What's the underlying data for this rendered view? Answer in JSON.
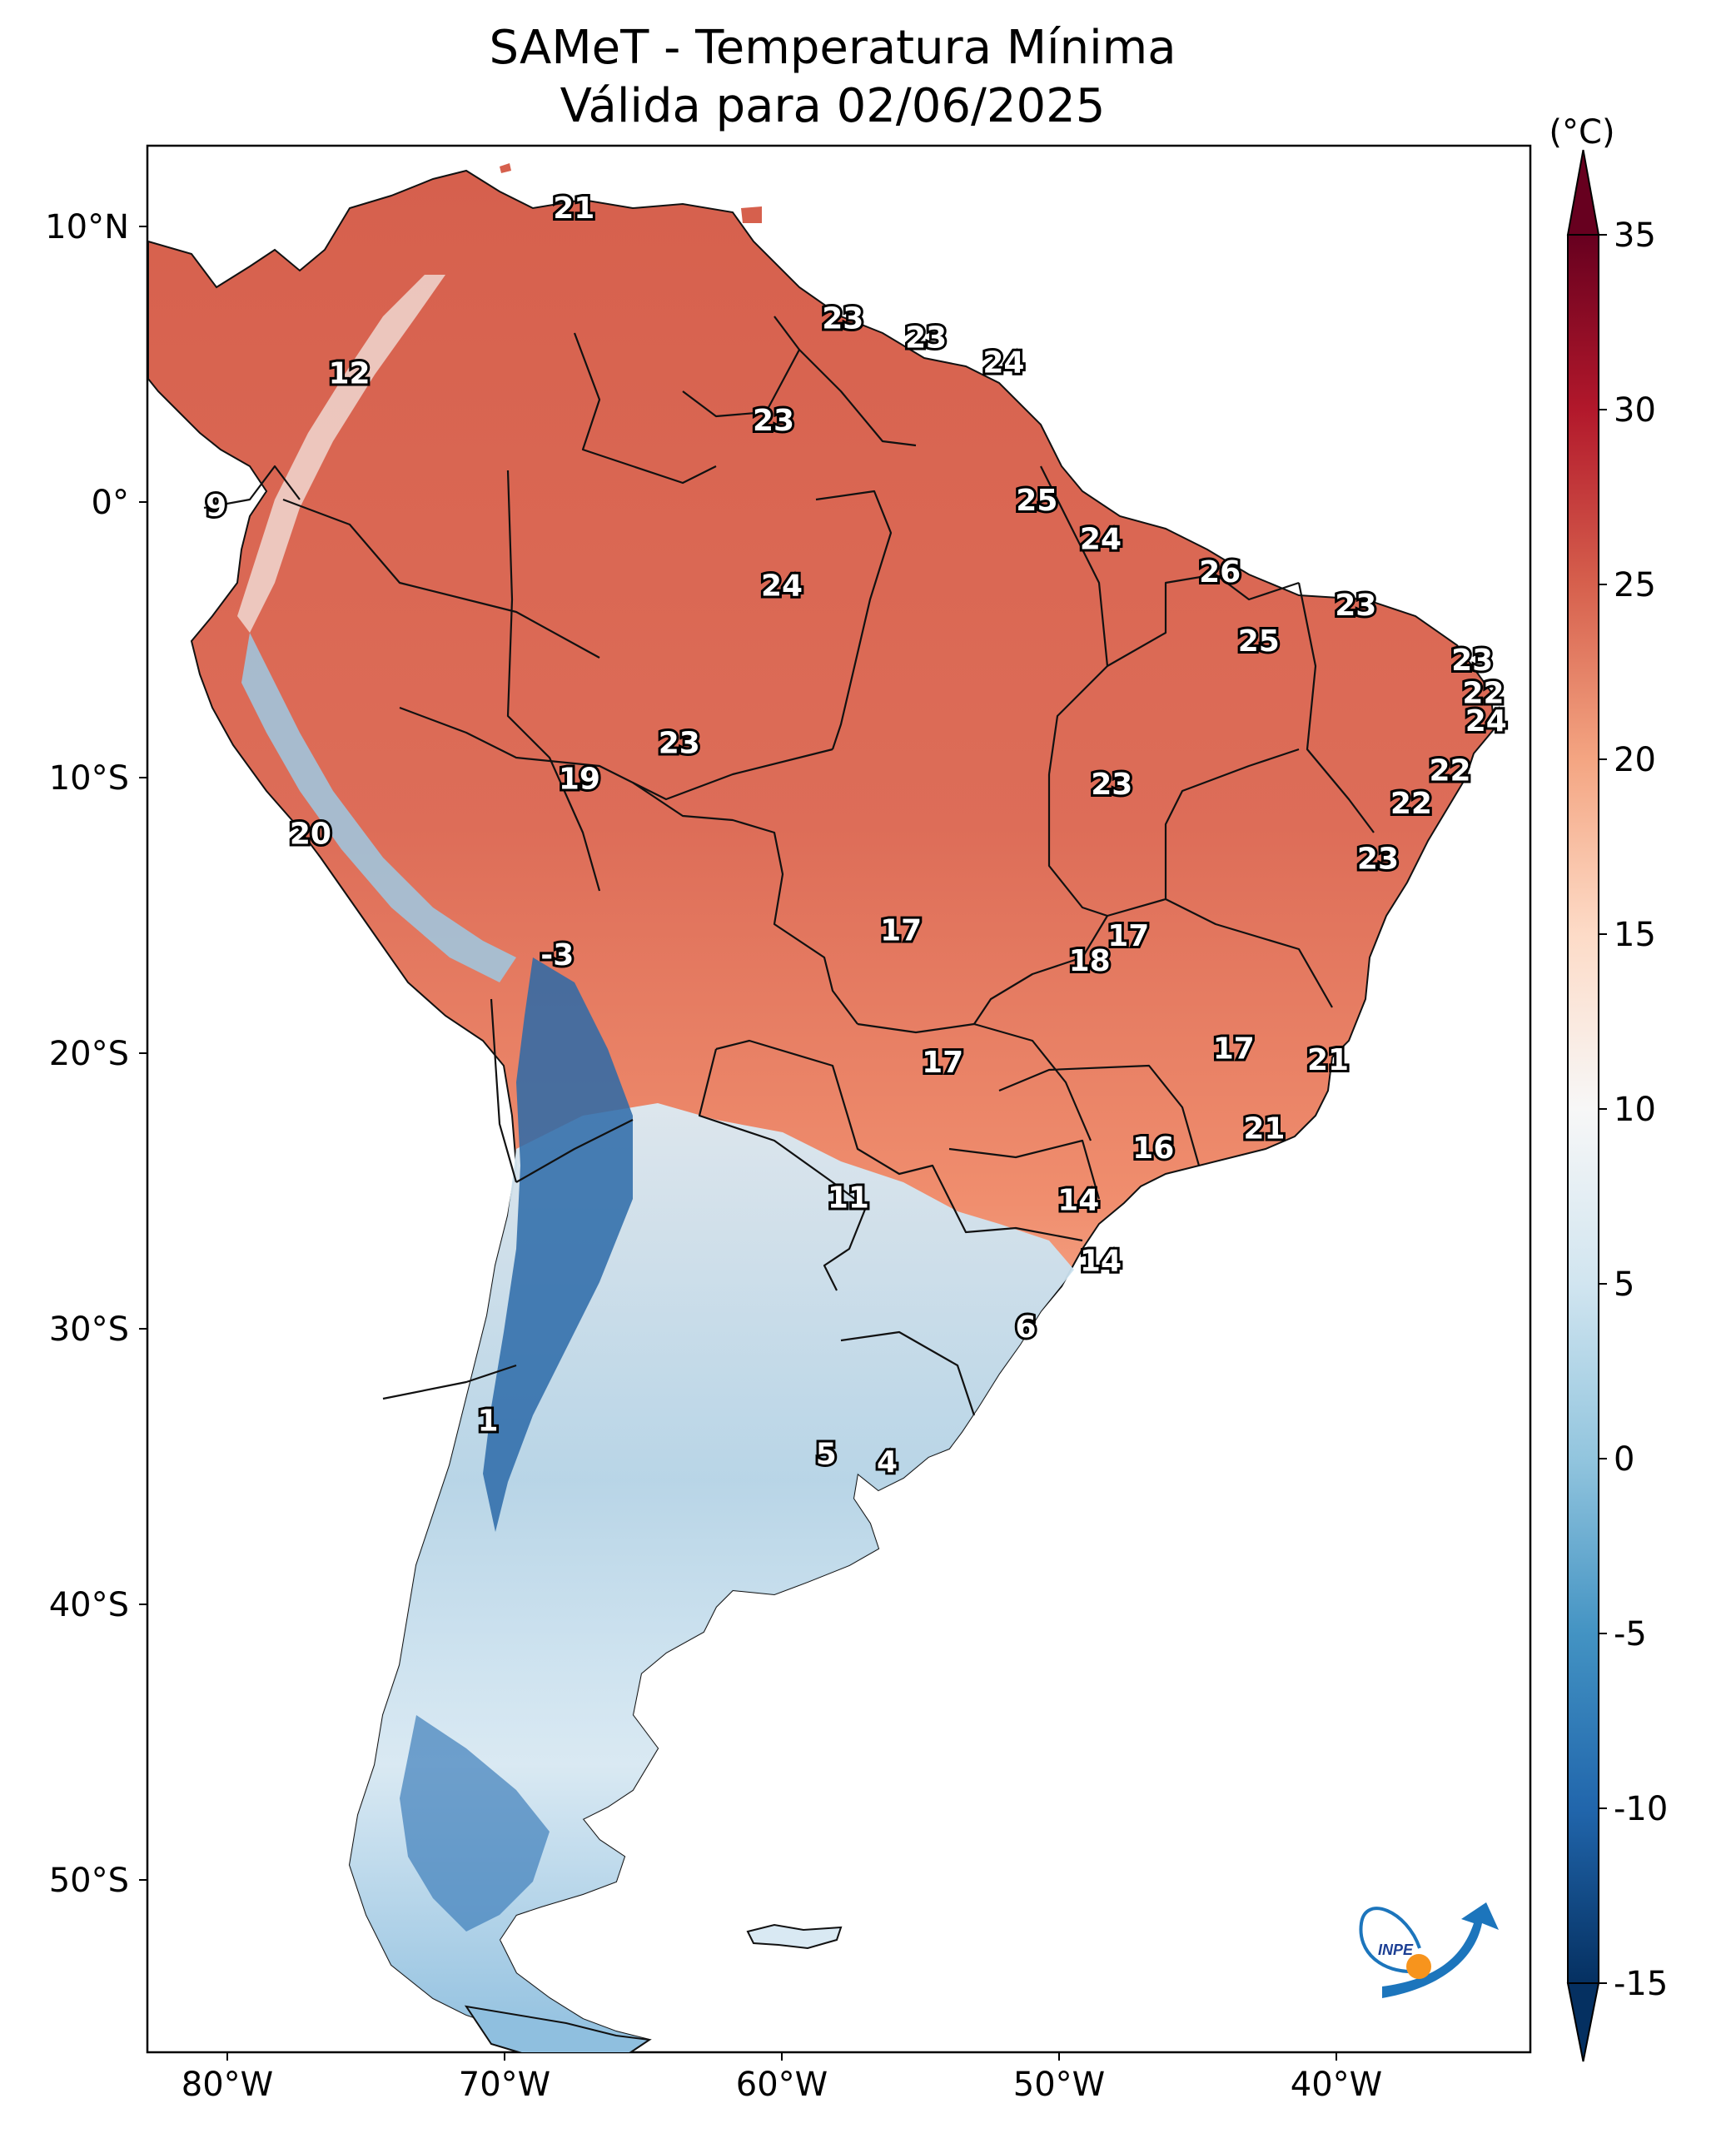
{
  "title": "SAMeT - Temperatura Mínima",
  "subtitle": "Válida para 02/06/2025",
  "colorbar": {
    "unit": "(°C)",
    "min": -15,
    "max": 35,
    "ticks": [
      "35",
      "30",
      "25",
      "20",
      "15",
      "10",
      "5",
      "0",
      "-5",
      "-10",
      "-15"
    ],
    "colors": [
      "#053061",
      "#2166ac",
      "#4393c3",
      "#92c5de",
      "#d1e5f0",
      "#f7f7f7",
      "#fddbc7",
      "#f4a582",
      "#d6604d",
      "#b2182b",
      "#67001f"
    ]
  },
  "longitude_ticks": [
    "80°W",
    "70°W",
    "60°W",
    "50°W",
    "40°W"
  ],
  "latitude_ticks": [
    "10°N",
    "0°",
    "10°S",
    "20°S",
    "30°S",
    "40°S",
    "50°S"
  ],
  "logo": "INPE",
  "station_values": [
    {
      "value": "21",
      "lon": -67.5,
      "lat": 10.6
    },
    {
      "value": "23",
      "lon": -57.8,
      "lat": 6.6
    },
    {
      "value": "23",
      "lon": -54.8,
      "lat": 5.9
    },
    {
      "value": "24",
      "lon": -52.0,
      "lat": 5.0
    },
    {
      "value": "12",
      "lon": -75.6,
      "lat": 4.6
    },
    {
      "value": "23",
      "lon": -60.3,
      "lat": 2.9
    },
    {
      "value": "9",
      "lon": -80.4,
      "lat": -0.2
    },
    {
      "value": "25",
      "lon": -50.8,
      "lat": 0.0
    },
    {
      "value": "24",
      "lon": -48.5,
      "lat": -1.4
    },
    {
      "value": "26",
      "lon": -44.2,
      "lat": -2.6
    },
    {
      "value": "23",
      "lon": -39.3,
      "lat": -3.8
    },
    {
      "value": "24",
      "lon": -60.0,
      "lat": -3.1
    },
    {
      "value": "25",
      "lon": -42.8,
      "lat": -5.1
    },
    {
      "value": "23",
      "lon": -35.1,
      "lat": -5.8
    },
    {
      "value": "22",
      "lon": -34.7,
      "lat": -7.0
    },
    {
      "value": "24",
      "lon": -34.6,
      "lat": -8.0
    },
    {
      "value": "23",
      "lon": -63.7,
      "lat": -8.8
    },
    {
      "value": "22",
      "lon": -35.9,
      "lat": -9.8
    },
    {
      "value": "19",
      "lon": -67.3,
      "lat": -10.1
    },
    {
      "value": "23",
      "lon": -48.1,
      "lat": -10.3
    },
    {
      "value": "22",
      "lon": -37.3,
      "lat": -11.0
    },
    {
      "value": "20",
      "lon": -77.0,
      "lat": -12.1
    },
    {
      "value": "23",
      "lon": -38.5,
      "lat": -13.0
    },
    {
      "value": "17",
      "lon": -55.7,
      "lat": -15.6
    },
    {
      "value": "17",
      "lon": -47.5,
      "lat": -15.8
    },
    {
      "value": "18",
      "lon": -48.9,
      "lat": -16.7
    },
    {
      "value": "-3",
      "lon": -68.1,
      "lat": -16.5
    },
    {
      "value": "17",
      "lon": -54.2,
      "lat": -20.4
    },
    {
      "value": "17",
      "lon": -43.7,
      "lat": -19.9
    },
    {
      "value": "21",
      "lon": -40.3,
      "lat": -20.3
    },
    {
      "value": "21",
      "lon": -42.6,
      "lat": -22.8
    },
    {
      "value": "16",
      "lon": -46.6,
      "lat": -23.5
    },
    {
      "value": "11",
      "lon": -57.6,
      "lat": -25.3
    },
    {
      "value": "14",
      "lon": -49.3,
      "lat": -25.4
    },
    {
      "value": "14",
      "lon": -48.5,
      "lat": -27.6
    },
    {
      "value": "6",
      "lon": -51.2,
      "lat": -30.0
    },
    {
      "value": "1",
      "lon": -70.6,
      "lat": -33.4
    },
    {
      "value": "5",
      "lon": -58.4,
      "lat": -34.6
    },
    {
      "value": "4",
      "lon": -56.2,
      "lat": -34.9
    }
  ]
}
